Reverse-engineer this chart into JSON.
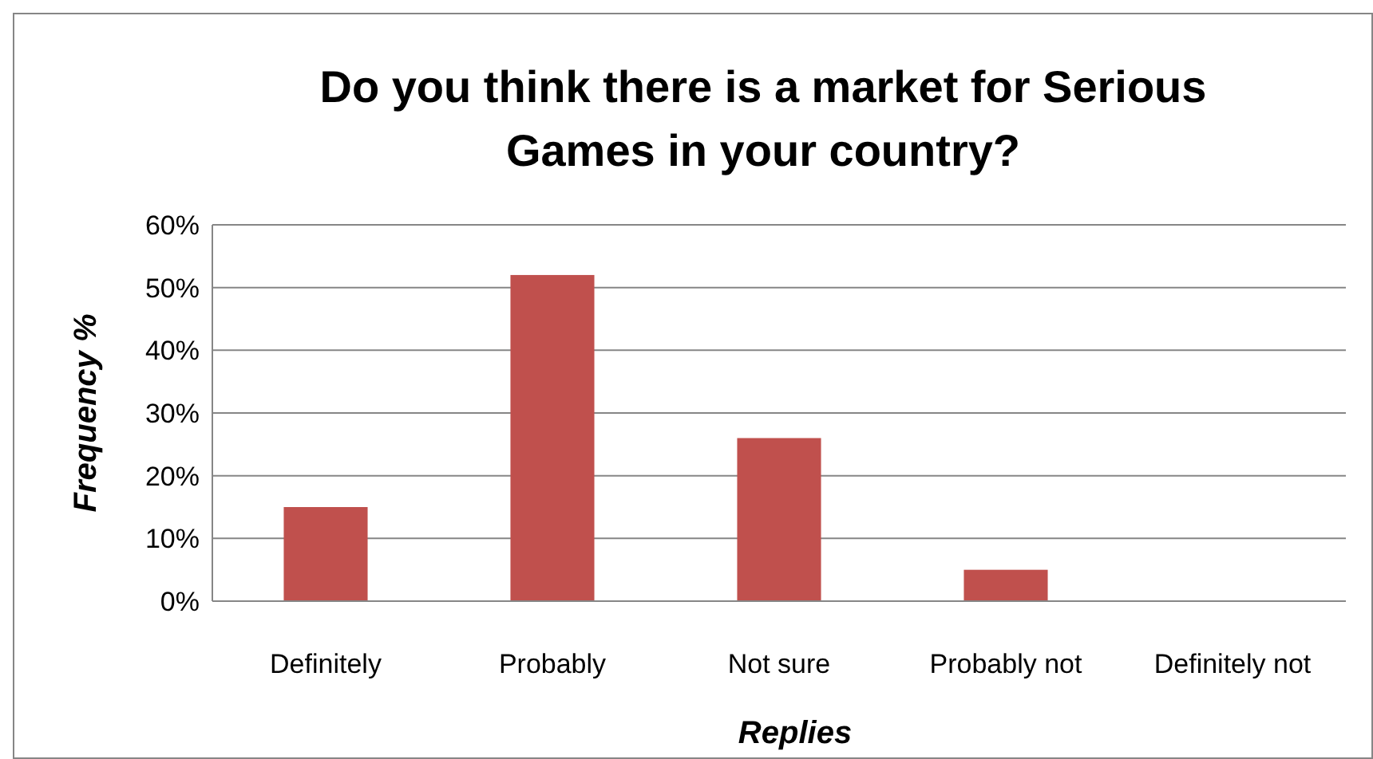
{
  "chart_data": {
    "type": "bar",
    "title": "Do you think there is a market for Serious Games in your country?",
    "xlabel": "Replies",
    "ylabel": "Frequency %",
    "categories": [
      "Definitely",
      "Probably",
      "Not sure",
      "Probably not",
      "Definitely not"
    ],
    "values": [
      15,
      52,
      26,
      5,
      0
    ],
    "color": "#c0504d",
    "ylim": [
      0,
      60
    ],
    "yticks": [
      {
        "value": 0,
        "label": "0%"
      },
      {
        "value": 10,
        "label": "10%"
      },
      {
        "value": 20,
        "label": "20%"
      },
      {
        "value": 30,
        "label": "30%"
      },
      {
        "value": 40,
        "label": "40%"
      },
      {
        "value": 50,
        "label": "50%"
      },
      {
        "value": 60,
        "label": "60%"
      }
    ],
    "grid": "y"
  }
}
